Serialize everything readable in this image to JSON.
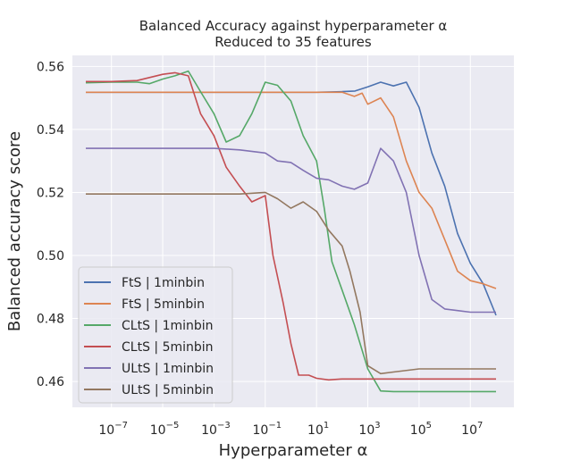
{
  "chart_data": {
    "type": "line",
    "title": "Balanced Accuracy against hyperparameter α",
    "subtitle": "Reduced to 35 features",
    "xlabel": "Hyperparameter α",
    "ylabel": "Balanced accuracy score",
    "x_scale": "log",
    "xlim": [
      3e-09,
      500000000.0
    ],
    "ylim": [
      0.4518,
      0.5635
    ],
    "x_ticks": [
      {
        "exp": -7,
        "base": "10",
        "power": "−7"
      },
      {
        "exp": -5,
        "base": "10",
        "power": "−5"
      },
      {
        "exp": -3,
        "base": "10",
        "power": "−3"
      },
      {
        "exp": -1,
        "base": "10",
        "power": "−1"
      },
      {
        "exp": 1,
        "base": "10",
        "power": "1"
      },
      {
        "exp": 3,
        "base": "10",
        "power": "3"
      },
      {
        "exp": 5,
        "base": "10",
        "power": "5"
      },
      {
        "exp": 7,
        "base": "10",
        "power": "7"
      }
    ],
    "y_ticks": [
      {
        "value": 0.46,
        "label": "0.46"
      },
      {
        "value": 0.48,
        "label": "0.48"
      },
      {
        "value": 0.5,
        "label": "0.50"
      },
      {
        "value": 0.52,
        "label": "0.52"
      },
      {
        "value": 0.54,
        "label": "0.54"
      },
      {
        "value": 0.56,
        "label": "0.56"
      }
    ],
    "grid": true,
    "background": "#eaeaf2",
    "legend_position": "lower-left",
    "series": [
      {
        "name": "FtS | 1minbin",
        "color": "#4c72b0",
        "points": [
          [
            1e-08,
            0.5518
          ],
          [
            1e-07,
            0.5518
          ],
          [
            1e-06,
            0.5518
          ],
          [
            1e-05,
            0.5518
          ],
          [
            0.0001,
            0.5518
          ],
          [
            0.001,
            0.5518
          ],
          [
            0.01,
            0.5518
          ],
          [
            0.1,
            0.5518
          ],
          [
            1,
            0.5518
          ],
          [
            10,
            0.5518
          ],
          [
            100,
            0.552
          ],
          [
            316,
            0.5522
          ],
          [
            1000,
            0.5535
          ],
          [
            3162,
            0.555
          ],
          [
            10000,
            0.5538
          ],
          [
            31623,
            0.555
          ],
          [
            100000,
            0.547
          ],
          [
            316228,
            0.5325
          ],
          [
            1000000,
            0.522
          ],
          [
            3162278,
            0.507
          ],
          [
            10000000,
            0.4975
          ],
          [
            31622777,
            0.491
          ],
          [
            100000000,
            0.481
          ]
        ]
      },
      {
        "name": "FtS | 5minbin",
        "color": "#dd8452",
        "points": [
          [
            1e-08,
            0.5518
          ],
          [
            1e-07,
            0.5518
          ],
          [
            1e-06,
            0.5518
          ],
          [
            1e-05,
            0.5518
          ],
          [
            0.0001,
            0.5518
          ],
          [
            0.001,
            0.5518
          ],
          [
            0.01,
            0.5518
          ],
          [
            0.1,
            0.5518
          ],
          [
            1,
            0.5518
          ],
          [
            10,
            0.5518
          ],
          [
            100,
            0.5518
          ],
          [
            300,
            0.5505
          ],
          [
            600,
            0.5515
          ],
          [
            1000,
            0.548
          ],
          [
            3162,
            0.55
          ],
          [
            10000,
            0.544
          ],
          [
            31623,
            0.53
          ],
          [
            100000,
            0.52
          ],
          [
            316228,
            0.515
          ],
          [
            1000000,
            0.505
          ],
          [
            3162278,
            0.495
          ],
          [
            10000000,
            0.492
          ],
          [
            31622777,
            0.491
          ],
          [
            100000000,
            0.4895
          ]
        ]
      },
      {
        "name": "CLtS | 1minbin",
        "color": "#55a868",
        "points": [
          [
            1e-08,
            0.5548
          ],
          [
            1e-07,
            0.555
          ],
          [
            1e-06,
            0.555
          ],
          [
            3e-06,
            0.5545
          ],
          [
            1e-05,
            0.556
          ],
          [
            3e-05,
            0.557
          ],
          [
            0.0001,
            0.5585
          ],
          [
            0.0003,
            0.552
          ],
          [
            0.001,
            0.545
          ],
          [
            0.003,
            0.536
          ],
          [
            0.01,
            0.538
          ],
          [
            0.03,
            0.545
          ],
          [
            0.1,
            0.555
          ],
          [
            0.3,
            0.554
          ],
          [
            1,
            0.549
          ],
          [
            3,
            0.538
          ],
          [
            10,
            0.53
          ],
          [
            20,
            0.515
          ],
          [
            40,
            0.498
          ],
          [
            100,
            0.489
          ],
          [
            300,
            0.478
          ],
          [
            1000,
            0.464
          ],
          [
            3162,
            0.457
          ],
          [
            10000,
            0.4568
          ],
          [
            100000,
            0.4568
          ],
          [
            1000000,
            0.4568
          ],
          [
            10000000,
            0.4568
          ],
          [
            100000000,
            0.4568
          ]
        ]
      },
      {
        "name": "CLtS | 5minbin",
        "color": "#c44e52",
        "points": [
          [
            1e-08,
            0.5552
          ],
          [
            1e-07,
            0.5552
          ],
          [
            1e-06,
            0.5555
          ],
          [
            1e-05,
            0.5575
          ],
          [
            3e-05,
            0.558
          ],
          [
            0.0001,
            0.557
          ],
          [
            0.0003,
            0.545
          ],
          [
            0.001,
            0.538
          ],
          [
            0.003,
            0.528
          ],
          [
            0.01,
            0.522
          ],
          [
            0.03,
            0.517
          ],
          [
            0.1,
            0.519
          ],
          [
            0.2,
            0.5
          ],
          [
            0.5,
            0.485
          ],
          [
            1,
            0.472
          ],
          [
            2,
            0.462
          ],
          [
            5,
            0.462
          ],
          [
            10,
            0.461
          ],
          [
            30,
            0.4605
          ],
          [
            100,
            0.4608
          ],
          [
            1000,
            0.4608
          ],
          [
            100000,
            0.4608
          ],
          [
            100000000,
            0.4608
          ]
        ]
      },
      {
        "name": "ULtS | 1minbin",
        "color": "#8172b3",
        "points": [
          [
            1e-08,
            0.534
          ],
          [
            1e-07,
            0.534
          ],
          [
            1e-06,
            0.534
          ],
          [
            1e-05,
            0.534
          ],
          [
            0.0001,
            0.534
          ],
          [
            0.001,
            0.534
          ],
          [
            0.01,
            0.5335
          ],
          [
            0.1,
            0.5325
          ],
          [
            0.3,
            0.53
          ],
          [
            1,
            0.5295
          ],
          [
            3,
            0.527
          ],
          [
            10,
            0.5245
          ],
          [
            30,
            0.524
          ],
          [
            100,
            0.522
          ],
          [
            300,
            0.521
          ],
          [
            1000,
            0.523
          ],
          [
            3162,
            0.534
          ],
          [
            10000,
            0.53
          ],
          [
            31623,
            0.52
          ],
          [
            100000,
            0.5
          ],
          [
            316228,
            0.486
          ],
          [
            1000000,
            0.483
          ],
          [
            3162278,
            0.4825
          ],
          [
            10000000,
            0.482
          ],
          [
            100000000,
            0.482
          ]
        ]
      },
      {
        "name": "ULtS | 5minbin",
        "color": "#937860",
        "points": [
          [
            1e-08,
            0.5195
          ],
          [
            1e-07,
            0.5195
          ],
          [
            1e-06,
            0.5195
          ],
          [
            1e-05,
            0.5195
          ],
          [
            0.0001,
            0.5195
          ],
          [
            0.001,
            0.5195
          ],
          [
            0.01,
            0.5195
          ],
          [
            0.1,
            0.52
          ],
          [
            0.3,
            0.518
          ],
          [
            1,
            0.515
          ],
          [
            3,
            0.517
          ],
          [
            10,
            0.514
          ],
          [
            30,
            0.508
          ],
          [
            100,
            0.503
          ],
          [
            200,
            0.495
          ],
          [
            500,
            0.482
          ],
          [
            1000,
            0.465
          ],
          [
            3162,
            0.4625
          ],
          [
            10000,
            0.463
          ],
          [
            100000,
            0.464
          ],
          [
            1000000,
            0.464
          ],
          [
            100000000,
            0.464
          ]
        ]
      }
    ]
  }
}
